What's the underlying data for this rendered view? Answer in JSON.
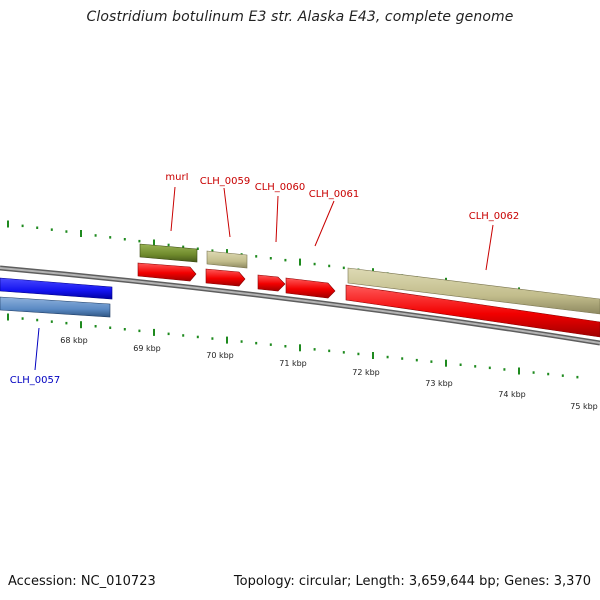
{
  "title": "Clostridium botulinum E3 str. Alaska E43, complete genome",
  "footer": {
    "accession": "Accession: NC_010723",
    "summary": "Topology: circular; Length: 3,659,644 bp; Genes: 3,370"
  },
  "colors": {
    "forward_cds": "#f20000",
    "reverse_cds": "#1414f0",
    "reverse_gene": "#5b8ac4",
    "gene_olive": "#6f8a2c",
    "gene_tan": "#c2bd8c",
    "backbone": "#8a8a8a",
    "ticks": "#1e8a1e",
    "label_forward": "#c80000",
    "label_reverse": "#0000c0"
  },
  "scale": {
    "unit": "kbp",
    "labels": [
      "68 kbp",
      "69 kbp",
      "70 kbp",
      "71 kbp",
      "72 kbp",
      "73 kbp",
      "74 kbp",
      "75 kbp"
    ]
  },
  "genes": [
    {
      "label": "CLH_0057",
      "strand": "reverse"
    },
    {
      "label": "murI",
      "strand": "forward"
    },
    {
      "label": "CLH_0059",
      "strand": "forward"
    },
    {
      "label": "CLH_0060",
      "strand": "forward"
    },
    {
      "label": "CLH_0061",
      "strand": "forward"
    },
    {
      "label": "CLH_0062",
      "strand": "forward"
    }
  ]
}
